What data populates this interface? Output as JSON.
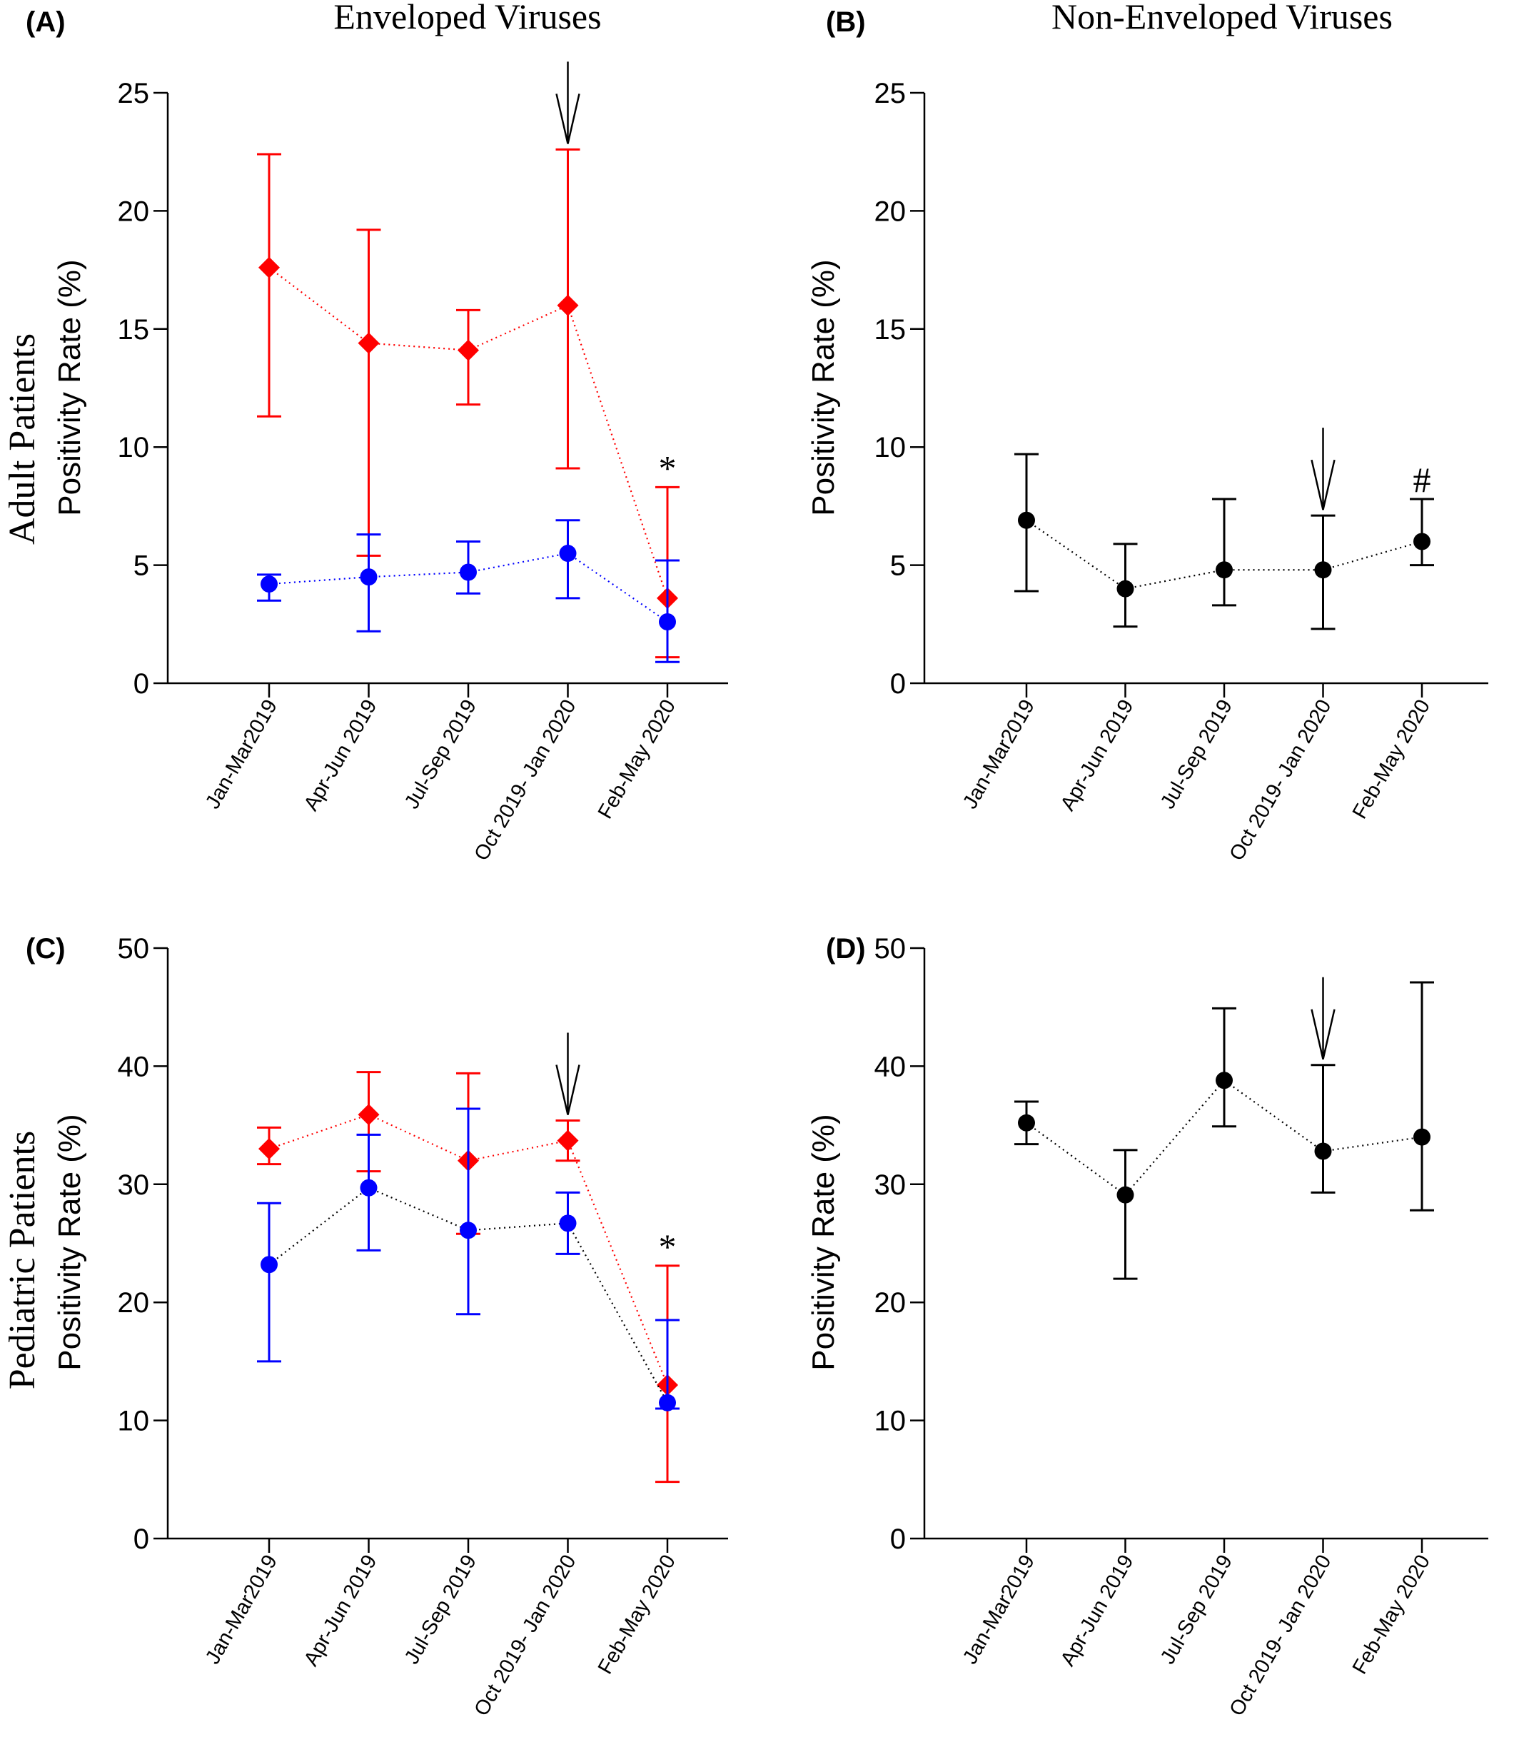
{
  "figure": {
    "column_titles": [
      "Enveloped Viruses",
      "Non-Enveloped Viruses"
    ],
    "row_titles": [
      "Adult Patients",
      "Pediatric Patients"
    ],
    "colors": {
      "red": "#ff0000",
      "blue": "#0000ff",
      "black": "#000000"
    }
  },
  "chart_data": [
    {
      "panel": "(A)",
      "type": "line",
      "ylabel": "Positivity Rate (%)",
      "ylim": [
        0,
        25
      ],
      "yticks": [
        0,
        5,
        10,
        15,
        20,
        25
      ],
      "categories": [
        "Jan-Mar2019",
        "Apr-Jun 2019",
        "Jul-Sep 2019",
        "Oct 2019- Jan 2020",
        "Feb-May 2020"
      ],
      "series": [
        {
          "color": "#ff0000",
          "marker": "diamond",
          "line_color": "#ff0000",
          "values": [
            17.6,
            14.4,
            14.1,
            16.0,
            3.6
          ],
          "err_low": [
            11.3,
            5.4,
            11.8,
            9.1,
            1.1
          ],
          "err_high": [
            22.4,
            19.2,
            15.8,
            22.6,
            8.3
          ]
        },
        {
          "color": "#0000ff",
          "marker": "circle",
          "line_color": "#0000ff",
          "values": [
            4.2,
            4.5,
            4.7,
            5.5,
            2.6
          ],
          "err_low": [
            3.5,
            2.2,
            3.8,
            3.6,
            0.9
          ],
          "err_high": [
            4.6,
            6.3,
            6.0,
            6.9,
            5.2
          ]
        }
      ],
      "annotations": [
        {
          "type": "arrow",
          "category_index": 3
        },
        {
          "type": "text",
          "text": "*",
          "category_index": 4
        }
      ]
    },
    {
      "panel": "(B)",
      "type": "line",
      "ylabel": "Positivity Rate (%)",
      "ylim": [
        0,
        25
      ],
      "yticks": [
        0,
        5,
        10,
        15,
        20,
        25
      ],
      "categories": [
        "Jan-Mar2019",
        "Apr-Jun 2019",
        "Jul-Sep 2019",
        "Oct 2019- Jan 2020",
        "Feb-May 2020"
      ],
      "series": [
        {
          "color": "#000000",
          "marker": "circle",
          "line_color": "#000000",
          "values": [
            6.9,
            4.0,
            4.8,
            4.8,
            6.0
          ],
          "err_low": [
            3.9,
            2.4,
            3.3,
            2.3,
            5.0
          ],
          "err_high": [
            9.7,
            5.9,
            7.8,
            7.1,
            7.8
          ]
        }
      ],
      "annotations": [
        {
          "type": "arrow",
          "category_index": 3
        },
        {
          "type": "text",
          "text": "#",
          "category_index": 4
        }
      ]
    },
    {
      "panel": "(C)",
      "type": "line",
      "ylabel": "Positivity Rate (%)",
      "ylim": [
        0,
        50
      ],
      "yticks": [
        0,
        10,
        20,
        30,
        40,
        50
      ],
      "categories": [
        "Jan-Mar2019",
        "Apr-Jun 2019",
        "Jul-Sep 2019",
        "Oct 2019- Jan 2020",
        "Feb-May 2020"
      ],
      "series": [
        {
          "color": "#ff0000",
          "marker": "diamond",
          "line_color": "#ff0000",
          "values": [
            33.0,
            35.9,
            32.0,
            33.7,
            13.0
          ],
          "err_low": [
            31.7,
            31.1,
            25.8,
            32.0,
            4.8
          ],
          "err_high": [
            34.8,
            39.5,
            39.4,
            35.4,
            23.1
          ]
        },
        {
          "color": "#0000ff",
          "marker": "circle",
          "line_color": "#000000",
          "values": [
            23.2,
            29.7,
            26.1,
            26.7,
            11.5
          ],
          "err_low": [
            15.0,
            24.4,
            19.0,
            24.1,
            11.0
          ],
          "err_high": [
            28.4,
            34.2,
            36.4,
            29.3,
            18.5
          ]
        }
      ],
      "annotations": [
        {
          "type": "arrow",
          "category_index": 3
        },
        {
          "type": "text",
          "text": "*",
          "category_index": 4
        }
      ]
    },
    {
      "panel": "(D)",
      "type": "line",
      "ylabel": "Positivity Rate (%)",
      "ylim": [
        0,
        50
      ],
      "yticks": [
        0,
        10,
        20,
        30,
        40,
        50
      ],
      "categories": [
        "Jan-Mar2019",
        "Apr-Jun 2019",
        "Jul-Sep 2019",
        "Oct 2019- Jan 2020",
        "Feb-May 2020"
      ],
      "series": [
        {
          "color": "#000000",
          "marker": "circle",
          "line_color": "#000000",
          "values": [
            35.2,
            29.1,
            38.8,
            32.8,
            34.0
          ],
          "err_low": [
            33.4,
            22.0,
            34.9,
            29.3,
            27.8
          ],
          "err_high": [
            37.0,
            32.9,
            44.9,
            40.1,
            47.1
          ]
        }
      ],
      "annotations": [
        {
          "type": "arrow",
          "category_index": 3
        }
      ]
    }
  ]
}
